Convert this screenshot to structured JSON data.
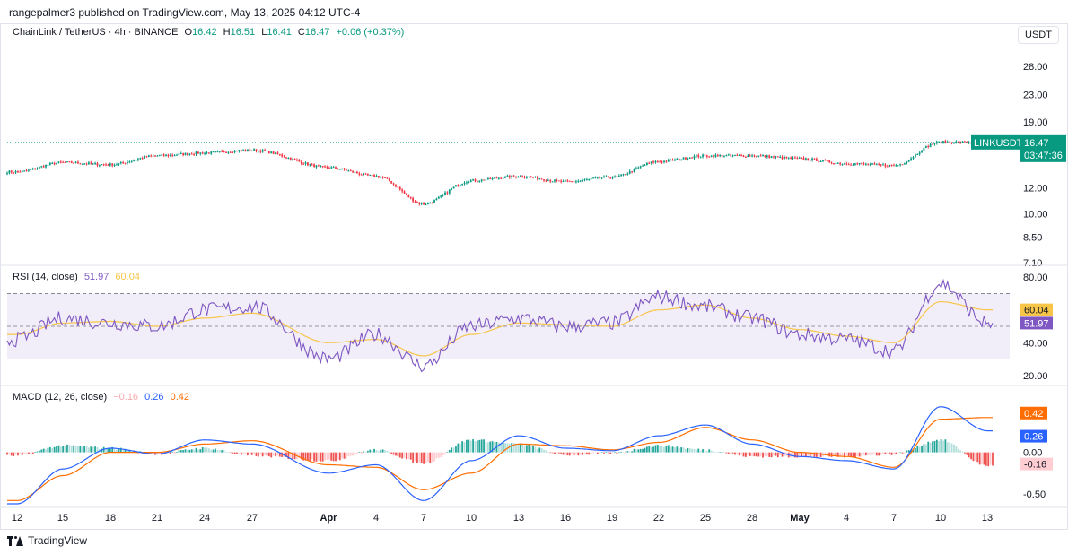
{
  "publish_line": "rangepalmer3 published on TradingView.com, May 13, 2025 04:12 UTC-4",
  "header": {
    "symbol": "ChainLink / TetherUS · 4h · BINANCE",
    "open_label": "O",
    "open": "16.42",
    "high_label": "H",
    "high": "16.51",
    "low_label": "L",
    "low": "16.41",
    "close_label": "C",
    "close": "16.47",
    "change": "+0.06 (+0.37%)",
    "currency_button": "USDT"
  },
  "price_badge": {
    "symbol": "LINKUSDT",
    "price": "16.47",
    "countdown": "03:47:36"
  },
  "rsi_label": {
    "name": "RSI (14, close)",
    "rsi": "51.97",
    "ma": "60.04"
  },
  "macd_label": {
    "name": "MACD (12, 26, close)",
    "hist": "−0.16",
    "macd": "0.26",
    "signal": "0.42"
  },
  "footer": {
    "brand": "TradingView"
  },
  "colors": {
    "up": "#089981",
    "down": "#f23645",
    "rsi": "#7e57c2",
    "rsi_ma": "#f7c548",
    "macd": "#2962ff",
    "signal": "#ff6d00",
    "hist_up": "#26a69a",
    "hist_down": "#ef5350"
  },
  "chart_data": [
    {
      "type": "candlestick",
      "title": "ChainLink / TetherUS · 4h · BINANCE",
      "scale": "log",
      "ylim": [
        7.1,
        33
      ],
      "y_ticks": [
        "28.00",
        "23.00",
        "19.00",
        "12.00",
        "10.00",
        "8.50",
        "7.10"
      ],
      "x_ticks": [
        "12",
        "15",
        "18",
        "21",
        "24",
        "27",
        "Apr",
        "4",
        "7",
        "10",
        "13",
        "16",
        "19",
        "22",
        "25",
        "28",
        "May",
        "4",
        "7",
        "10",
        "13"
      ],
      "x_ticks_bold": [
        "Apr",
        "May"
      ],
      "anchor_dates": [
        "Mar 12",
        "Mar 15",
        "Mar 18",
        "Mar 21",
        "Mar 24",
        "Mar 27",
        "Apr 1",
        "Apr 4",
        "Apr 7",
        "Apr 10",
        "Apr 13",
        "Apr 16",
        "Apr 19",
        "Apr 22",
        "Apr 25",
        "Apr 28",
        "May 1",
        "May 4",
        "May 7",
        "May 10",
        "May 13"
      ],
      "anchor_close": [
        13.4,
        14.3,
        14.1,
        15.0,
        15.3,
        15.6,
        13.8,
        13.0,
        10.7,
        12.6,
        13.0,
        12.5,
        12.9,
        14.4,
        15.0,
        15.0,
        14.7,
        14.2,
        14.0,
        16.5,
        16.47
      ],
      "last_price": 16.47
    },
    {
      "type": "line",
      "title": "RSI (14, close)",
      "ylim": [
        15,
        85
      ],
      "y_ticks": [
        "80.00",
        "60.00",
        "40.00",
        "20.00"
      ],
      "bands": [
        70,
        50,
        30
      ],
      "series": [
        {
          "name": "RSI",
          "anchor_values": [
            42,
            55,
            52,
            50,
            60,
            62,
            30,
            45,
            26,
            50,
            55,
            50,
            52,
            68,
            62,
            55,
            45,
            42,
            35,
            76,
            51.97
          ]
        },
        {
          "name": "RSI MA",
          "anchor_values": [
            45,
            52,
            53,
            50,
            55,
            58,
            40,
            42,
            32,
            45,
            52,
            51,
            50,
            60,
            63,
            55,
            48,
            44,
            40,
            65,
            60.04
          ]
        }
      ],
      "last_values": {
        "rsi": 51.97,
        "ma": 60.04
      }
    },
    {
      "type": "line+histogram",
      "title": "MACD (12, 26, close)",
      "ylim": [
        -0.62,
        0.72
      ],
      "y_ticks": [
        "0.00",
        "-0.50"
      ],
      "series": [
        {
          "name": "MACD",
          "anchor_values": [
            -0.62,
            -0.2,
            0.05,
            -0.02,
            0.15,
            0.1,
            -0.25,
            -0.15,
            -0.58,
            -0.1,
            0.2,
            0.05,
            0.02,
            0.2,
            0.33,
            0.1,
            -0.05,
            -0.1,
            -0.2,
            0.55,
            0.26
          ]
        },
        {
          "name": "Signal",
          "anchor_values": [
            -0.58,
            -0.28,
            0.0,
            0.0,
            0.1,
            0.14,
            -0.15,
            -0.18,
            -0.45,
            -0.25,
            0.1,
            0.08,
            0.03,
            0.12,
            0.3,
            0.15,
            0.0,
            -0.05,
            -0.18,
            0.4,
            0.42
          ]
        },
        {
          "name": "Histogram",
          "anchor_values": [
            -0.04,
            0.08,
            0.05,
            -0.02,
            0.05,
            -0.04,
            -0.1,
            0.03,
            -0.13,
            0.15,
            0.1,
            -0.03,
            -0.01,
            0.08,
            0.03,
            -0.05,
            -0.05,
            -0.05,
            -0.02,
            0.15,
            -0.16
          ]
        }
      ],
      "last_values": {
        "hist": -0.16,
        "macd": 0.26,
        "signal": 0.42
      }
    }
  ]
}
